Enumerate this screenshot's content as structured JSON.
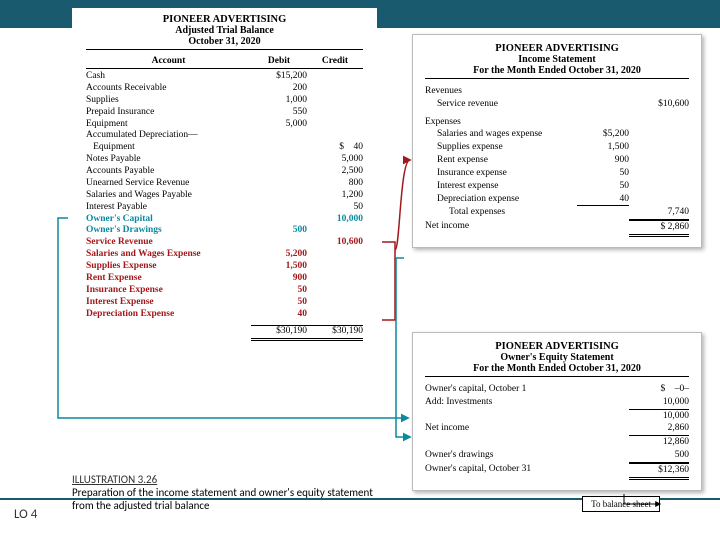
{
  "colors": {
    "header": "#1a5a6e",
    "red": "#a4181b",
    "teal": "#0a8a9e"
  },
  "tb": {
    "company": "PIONEER ADVERTISING",
    "title": "Adjusted Trial Balance",
    "date": "October 31, 2020",
    "head_account": "Account",
    "head_debit": "Debit",
    "head_credit": "Credit",
    "rows": [
      {
        "a": "Cash",
        "d": "$15,200",
        "c": "",
        "cls": ""
      },
      {
        "a": "Accounts Receivable",
        "d": "200",
        "c": "",
        "cls": ""
      },
      {
        "a": "Supplies",
        "d": "1,000",
        "c": "",
        "cls": ""
      },
      {
        "a": "Prepaid Insurance",
        "d": "550",
        "c": "",
        "cls": ""
      },
      {
        "a": "Equipment",
        "d": "5,000",
        "c": "",
        "cls": ""
      },
      {
        "a": "Accumulated Depreciation—",
        "d": "",
        "c": "",
        "cls": ""
      },
      {
        "a": "   Equipment",
        "d": "",
        "c": "$    40",
        "cls": ""
      },
      {
        "a": "Notes Payable",
        "d": "",
        "c": "5,000",
        "cls": ""
      },
      {
        "a": "Accounts Payable",
        "d": "",
        "c": "2,500",
        "cls": ""
      },
      {
        "a": "Unearned Service Revenue",
        "d": "",
        "c": "800",
        "cls": ""
      },
      {
        "a": "Salaries and Wages Payable",
        "d": "",
        "c": "1,200",
        "cls": ""
      },
      {
        "a": "Interest Payable",
        "d": "",
        "c": "50",
        "cls": ""
      },
      {
        "a": "Owner's Capital",
        "d": "",
        "c": "10,000",
        "cls": "teal"
      },
      {
        "a": "Owner's Drawings",
        "d": "500",
        "c": "",
        "cls": "teal"
      },
      {
        "a": "Service Revenue",
        "d": "",
        "c": "10,600",
        "cls": "red"
      },
      {
        "a": "Salaries and Wages Expense",
        "d": "5,200",
        "c": "",
        "cls": "red"
      },
      {
        "a": "Supplies Expense",
        "d": "1,500",
        "c": "",
        "cls": "red"
      },
      {
        "a": "Rent Expense",
        "d": "900",
        "c": "",
        "cls": "red"
      },
      {
        "a": "Insurance Expense",
        "d": "50",
        "c": "",
        "cls": "red"
      },
      {
        "a": "Interest Expense",
        "d": "50",
        "c": "",
        "cls": "red"
      },
      {
        "a": "Depreciation Expense",
        "d": "40",
        "c": "",
        "cls": "red"
      }
    ],
    "total_d": "$30,190",
    "total_c": "$30,190"
  },
  "is": {
    "company": "PIONEER ADVERTISING",
    "title": "Income Statement",
    "period": "For the Month Ended October 31, 2020",
    "rev_head": "Revenues",
    "rev_label": "Service revenue",
    "rev_amount": "$10,600",
    "exp_head": "Expenses",
    "expenses": [
      {
        "l": "Salaries and wages expense",
        "v": "$5,200"
      },
      {
        "l": "Supplies expense",
        "v": "1,500"
      },
      {
        "l": "Rent expense",
        "v": "900"
      },
      {
        "l": "Insurance expense",
        "v": "50"
      },
      {
        "l": "Interest expense",
        "v": "50"
      },
      {
        "l": "Depreciation expense",
        "v": "40"
      }
    ],
    "total_exp_label": "Total expenses",
    "total_exp": "7,740",
    "ni_label": "Net income",
    "ni": "$  2,860"
  },
  "oe": {
    "company": "PIONEER ADVERTISING",
    "title": "Owner's Equity Statement",
    "period": "For the Month Ended October 31, 2020",
    "rows": [
      {
        "l": "Owner's capital, October 1",
        "n2": "$    –0–"
      },
      {
        "l": "Add: Investments",
        "n2": "10,000",
        "ub": true
      },
      {
        "l": "",
        "n2": "10,000"
      },
      {
        "l": "Net income",
        "n2": "2,860",
        "ub": true
      },
      {
        "l": "",
        "n2": "12,860"
      },
      {
        "l": "Owner's drawings",
        "n2": "500",
        "ub": true
      },
      {
        "l": "Owner's capital, October 31",
        "n2": "$12,360",
        "dsb": true
      }
    ]
  },
  "caption": {
    "label": "ILLUSTRATION 3.26",
    "text": "Preparation of the income statement and owner's equity statement from the adjusted trial balance"
  },
  "lo": "LO 4",
  "tobs": "To balance sheet"
}
